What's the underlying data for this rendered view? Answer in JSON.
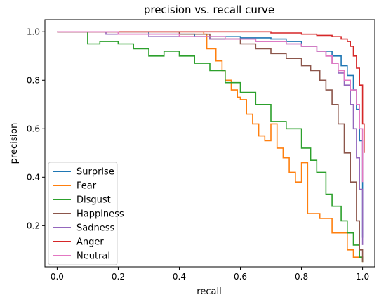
{
  "chart_data": {
    "type": "line",
    "title": "precision vs. recall curve",
    "xlabel": "recall",
    "ylabel": "precision",
    "xlim": [
      -0.04,
      1.04
    ],
    "ylim": [
      0.03,
      1.05
    ],
    "xticks": [
      0.0,
      0.2,
      0.4,
      0.6,
      0.8,
      1.0
    ],
    "xtick_labels": [
      "0.0",
      "0.2",
      "0.4",
      "0.6",
      "0.8",
      "1.0"
    ],
    "yticks": [
      0.2,
      0.4,
      0.6,
      0.8,
      1.0
    ],
    "ytick_labels": [
      "0.2",
      "0.4",
      "0.6",
      "0.8",
      "1.0"
    ],
    "grid": false,
    "legend_position": "lower-left",
    "series": [
      {
        "name": "Surprise",
        "color": "#1f77b4",
        "x": [
          0.0,
          0.1,
          0.3,
          0.45,
          0.6,
          0.7,
          0.75,
          0.8,
          0.85,
          0.9,
          0.93,
          0.95,
          0.97,
          0.98,
          0.99,
          1.0
        ],
        "y": [
          1.0,
          1.0,
          0.99,
          0.98,
          0.975,
          0.97,
          0.96,
          0.94,
          0.92,
          0.9,
          0.86,
          0.82,
          0.76,
          0.68,
          0.55,
          0.15
        ]
      },
      {
        "name": "Fear",
        "color": "#ff7f0e",
        "x": [
          0.0,
          0.48,
          0.49,
          0.52,
          0.54,
          0.55,
          0.57,
          0.59,
          0.6,
          0.62,
          0.64,
          0.66,
          0.68,
          0.7,
          0.72,
          0.74,
          0.76,
          0.78,
          0.8,
          0.82,
          0.86,
          0.9,
          0.95,
          0.97,
          1.0
        ],
        "y": [
          1.0,
          0.99,
          0.93,
          0.88,
          0.84,
          0.8,
          0.76,
          0.73,
          0.72,
          0.66,
          0.62,
          0.57,
          0.55,
          0.62,
          0.52,
          0.48,
          0.42,
          0.38,
          0.46,
          0.25,
          0.23,
          0.17,
          0.1,
          0.07,
          0.05
        ]
      },
      {
        "name": "Disgust",
        "color": "#2ca02c",
        "x": [
          0.0,
          0.1,
          0.14,
          0.2,
          0.25,
          0.3,
          0.35,
          0.4,
          0.45,
          0.5,
          0.55,
          0.6,
          0.65,
          0.7,
          0.75,
          0.8,
          0.83,
          0.85,
          0.88,
          0.9,
          0.93,
          0.95,
          0.97,
          0.99,
          1.0
        ],
        "y": [
          1.0,
          0.95,
          0.96,
          0.95,
          0.93,
          0.9,
          0.92,
          0.9,
          0.87,
          0.84,
          0.79,
          0.75,
          0.7,
          0.63,
          0.6,
          0.52,
          0.47,
          0.42,
          0.33,
          0.28,
          0.22,
          0.17,
          0.12,
          0.07,
          0.05
        ]
      },
      {
        "name": "Happiness",
        "color": "#8c564b",
        "x": [
          0.0,
          0.2,
          0.4,
          0.5,
          0.6,
          0.65,
          0.7,
          0.75,
          0.8,
          0.83,
          0.86,
          0.88,
          0.9,
          0.92,
          0.94,
          0.96,
          0.98,
          0.99,
          1.0
        ],
        "y": [
          1.0,
          1.0,
          0.99,
          0.97,
          0.95,
          0.93,
          0.91,
          0.89,
          0.86,
          0.84,
          0.8,
          0.76,
          0.7,
          0.62,
          0.5,
          0.38,
          0.22,
          0.1,
          0.05
        ]
      },
      {
        "name": "Sadness",
        "color": "#9467bd",
        "x": [
          0.0,
          0.16,
          0.3,
          0.5,
          0.65,
          0.75,
          0.8,
          0.85,
          0.88,
          0.9,
          0.92,
          0.94,
          0.96,
          0.97,
          0.98,
          0.99,
          1.0
        ],
        "y": [
          1.0,
          0.99,
          0.98,
          0.97,
          0.96,
          0.95,
          0.94,
          0.92,
          0.9,
          0.87,
          0.83,
          0.78,
          0.7,
          0.6,
          0.48,
          0.35,
          0.12
        ]
      },
      {
        "name": "Anger",
        "color": "#d62728",
        "x": [
          0.0,
          0.3,
          0.5,
          0.7,
          0.8,
          0.85,
          0.9,
          0.93,
          0.95,
          0.96,
          0.97,
          0.98,
          0.99,
          1.0,
          1.005
        ],
        "y": [
          1.0,
          1.0,
          1.0,
          0.995,
          0.99,
          0.985,
          0.98,
          0.97,
          0.96,
          0.94,
          0.9,
          0.85,
          0.78,
          0.62,
          0.5
        ]
      },
      {
        "name": "Neutral",
        "color": "#e377c2",
        "x": [
          0.0,
          0.2,
          0.4,
          0.55,
          0.65,
          0.75,
          0.8,
          0.85,
          0.88,
          0.9,
          0.92,
          0.94,
          0.96,
          0.98,
          0.99,
          1.0
        ],
        "y": [
          1.0,
          0.99,
          0.98,
          0.97,
          0.96,
          0.95,
          0.94,
          0.92,
          0.9,
          0.87,
          0.84,
          0.8,
          0.76,
          0.7,
          0.6,
          0.38
        ]
      }
    ]
  }
}
